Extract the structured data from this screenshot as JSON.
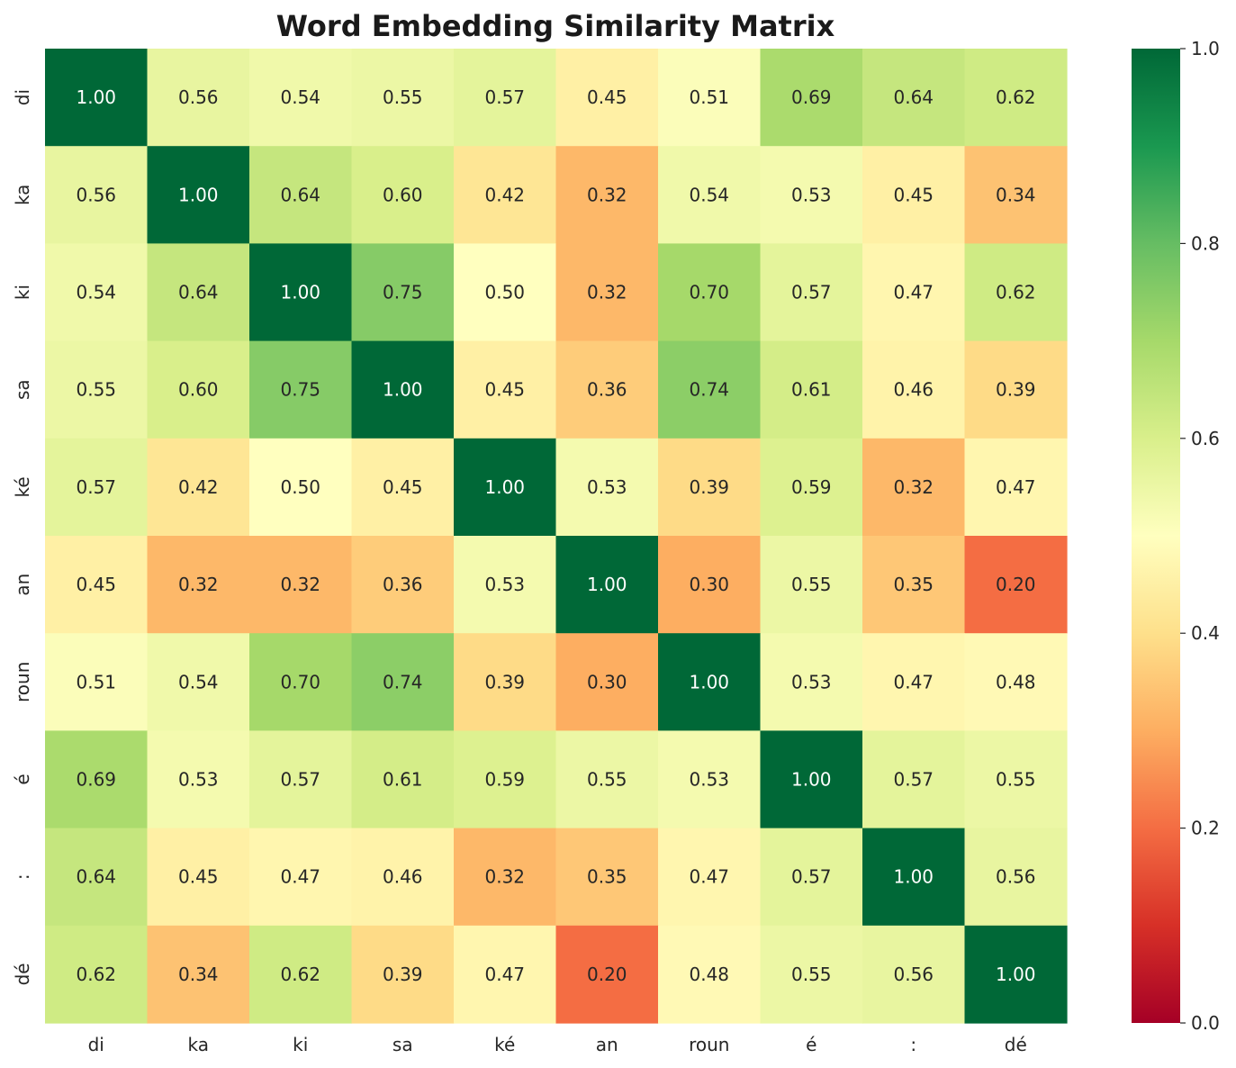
{
  "chart_data": {
    "type": "heatmap",
    "title": "Word Embedding Similarity Matrix",
    "labels": [
      "di",
      "ka",
      "ki",
      "sa",
      "ké",
      "an",
      "roun",
      "é",
      ":",
      "dé"
    ],
    "values": [
      [
        1.0,
        0.56,
        0.54,
        0.55,
        0.57,
        0.45,
        0.51,
        0.69,
        0.64,
        0.62
      ],
      [
        0.56,
        1.0,
        0.64,
        0.6,
        0.42,
        0.32,
        0.54,
        0.53,
        0.45,
        0.34
      ],
      [
        0.54,
        0.64,
        1.0,
        0.75,
        0.5,
        0.32,
        0.7,
        0.57,
        0.47,
        0.62
      ],
      [
        0.55,
        0.6,
        0.75,
        1.0,
        0.45,
        0.36,
        0.74,
        0.61,
        0.46,
        0.39
      ],
      [
        0.57,
        0.42,
        0.5,
        0.45,
        1.0,
        0.53,
        0.39,
        0.59,
        0.32,
        0.47
      ],
      [
        0.45,
        0.32,
        0.32,
        0.36,
        0.53,
        1.0,
        0.3,
        0.55,
        0.35,
        0.2
      ],
      [
        0.51,
        0.54,
        0.7,
        0.74,
        0.39,
        0.3,
        1.0,
        0.53,
        0.47,
        0.48
      ],
      [
        0.69,
        0.53,
        0.57,
        0.61,
        0.59,
        0.55,
        0.53,
        1.0,
        0.57,
        0.55
      ],
      [
        0.64,
        0.45,
        0.47,
        0.46,
        0.32,
        0.35,
        0.47,
        0.57,
        1.0,
        0.56
      ],
      [
        0.62,
        0.34,
        0.62,
        0.39,
        0.47,
        0.2,
        0.48,
        0.55,
        0.56,
        1.0
      ]
    ],
    "value_format": "0.00",
    "vmin": 0.0,
    "vmax": 1.0,
    "colormap": "RdYlGn",
    "colorbar_ticks": [
      "0.0",
      "0.2",
      "0.4",
      "0.6",
      "0.8",
      "1.0"
    ],
    "colorbar_position": "right",
    "grid": false
  }
}
